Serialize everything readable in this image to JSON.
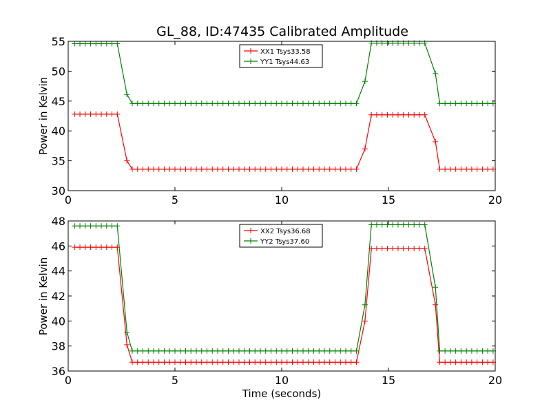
{
  "figure": {
    "title": "GL_88, ID:47435 Calibrated Amplitude"
  },
  "chart_data": [
    {
      "type": "line",
      "xlabel": "",
      "ylabel": "Power in Kelvin",
      "xlim": [
        0,
        20
      ],
      "ylim": [
        30,
        55
      ],
      "xticks": [
        0,
        5,
        10,
        15,
        20
      ],
      "yticks": [
        30,
        35,
        40,
        45,
        50,
        55
      ],
      "grid": false,
      "legend_position": "top-center",
      "series": [
        {
          "name": "XX1 Tsys33.58",
          "color": "#ff0000",
          "segments": [
            {
              "x0": 0.3,
              "x1": 2.5,
              "v": 42.8
            },
            {
              "x0": 2.75,
              "v": 35.0
            },
            {
              "x0": 3.0,
              "x1": 13.6,
              "v": 33.6
            },
            {
              "x0": 13.9,
              "v": 37.0
            },
            {
              "x0": 14.2,
              "x1": 16.9,
              "v": 42.7
            },
            {
              "x0": 17.2,
              "v": 38.2
            },
            {
              "x0": 17.4,
              "x1": 19.9,
              "v": 33.6
            }
          ]
        },
        {
          "name": "YY1 Tsys44.63",
          "color": "#008000",
          "segments": [
            {
              "x0": 0.3,
              "x1": 2.5,
              "v": 54.6
            },
            {
              "x0": 2.75,
              "v": 46.1
            },
            {
              "x0": 3.0,
              "x1": 13.6,
              "v": 44.6
            },
            {
              "x0": 13.9,
              "v": 48.3
            },
            {
              "x0": 14.2,
              "x1": 16.9,
              "v": 54.7
            },
            {
              "x0": 17.2,
              "v": 49.6
            },
            {
              "x0": 17.4,
              "x1": 19.9,
              "v": 44.6
            }
          ]
        }
      ]
    },
    {
      "type": "line",
      "xlabel": "Time (seconds)",
      "ylabel": "Power in Kelvin",
      "xlim": [
        0,
        20
      ],
      "ylim": [
        36,
        48
      ],
      "xticks": [
        0,
        5,
        10,
        15,
        20
      ],
      "yticks": [
        36,
        38,
        40,
        42,
        44,
        46,
        48
      ],
      "grid": false,
      "legend_position": "top-center",
      "series": [
        {
          "name": "XX2 Tsys36.68",
          "color": "#ff0000",
          "segments": [
            {
              "x0": 0.3,
              "x1": 2.5,
              "v": 45.9
            },
            {
              "x0": 2.75,
              "v": 38.1
            },
            {
              "x0": 3.0,
              "x1": 13.6,
              "v": 36.7
            },
            {
              "x0": 13.9,
              "v": 40.0
            },
            {
              "x0": 14.2,
              "x1": 16.9,
              "v": 45.8
            },
            {
              "x0": 17.2,
              "v": 41.3
            },
            {
              "x0": 17.4,
              "x1": 19.9,
              "v": 36.7
            }
          ]
        },
        {
          "name": "YY2 Tsys37.60",
          "color": "#008000",
          "segments": [
            {
              "x0": 0.3,
              "x1": 2.5,
              "v": 47.6
            },
            {
              "x0": 2.75,
              "v": 39.1
            },
            {
              "x0": 3.0,
              "x1": 13.6,
              "v": 37.6
            },
            {
              "x0": 13.9,
              "v": 41.3
            },
            {
              "x0": 14.2,
              "x1": 16.9,
              "v": 47.7
            },
            {
              "x0": 17.2,
              "v": 42.7
            },
            {
              "x0": 17.4,
              "x1": 19.9,
              "v": 37.6
            }
          ]
        }
      ]
    }
  ]
}
